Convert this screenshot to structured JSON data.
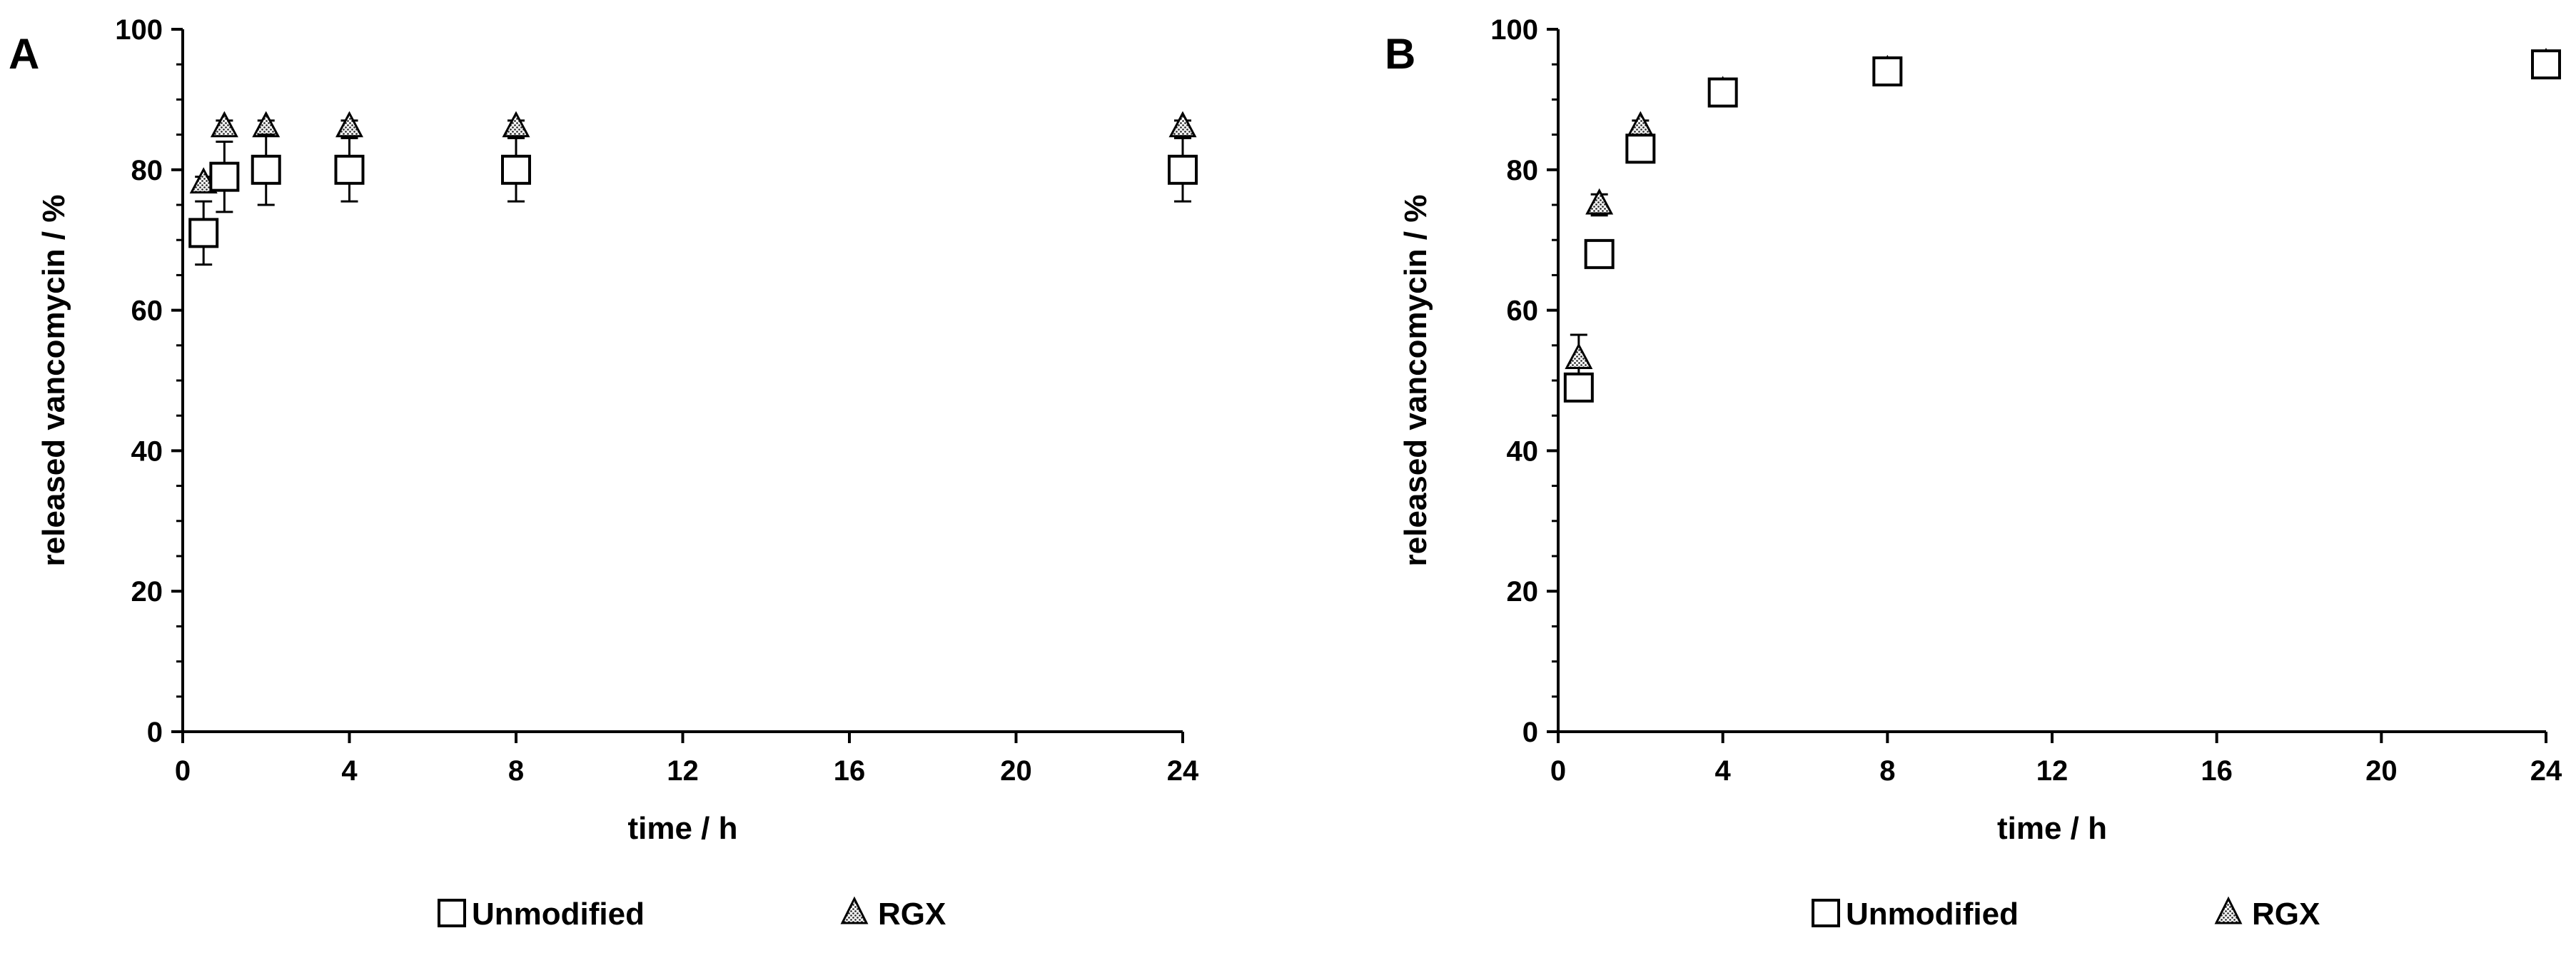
{
  "chart_data": [
    {
      "type": "scatter",
      "panel_label": "A",
      "xlabel": "time / h",
      "ylabel": "released vancomycin / %",
      "xlim": [
        0,
        24
      ],
      "ylim": [
        0,
        100
      ],
      "x_ticks": [
        0,
        4,
        8,
        12,
        16,
        20,
        24
      ],
      "y_ticks": [
        0,
        20,
        40,
        60,
        80,
        100
      ],
      "grid": false,
      "legend_position": "bottom",
      "series": [
        {
          "name": "Unmodified",
          "marker": "open-square",
          "x": [
            0.5,
            1,
            2,
            4,
            8,
            24
          ],
          "y": [
            71,
            79,
            80,
            80,
            80,
            80
          ],
          "error": [
            4.5,
            5,
            5,
            4.5,
            4.5,
            4.5
          ]
        },
        {
          "name": "RGX",
          "marker": "hatched-triangle",
          "x": [
            0.5,
            1,
            2,
            4,
            8,
            24
          ],
          "y": [
            78,
            86,
            86,
            86,
            86,
            86
          ],
          "error": [
            1,
            1,
            1,
            1,
            1,
            1
          ]
        }
      ]
    },
    {
      "type": "scatter",
      "panel_label": "B",
      "xlabel": "time / h",
      "ylabel": "released vancomycin / %",
      "xlim": [
        0,
        24
      ],
      "ylim": [
        0,
        100
      ],
      "x_ticks": [
        0,
        4,
        8,
        12,
        16,
        20,
        24
      ],
      "y_ticks": [
        0,
        20,
        40,
        60,
        80,
        100
      ],
      "grid": false,
      "legend_position": "bottom",
      "series": [
        {
          "name": "Unmodified",
          "marker": "open-square",
          "x": [
            0.5,
            1,
            2,
            4,
            8,
            24
          ],
          "y": [
            49,
            68,
            83,
            91,
            94,
            95
          ],
          "error": [
            1,
            1,
            1,
            1,
            1,
            1
          ]
        },
        {
          "name": "RGX",
          "marker": "hatched-triangle",
          "x": [
            0.5,
            1,
            2,
            4,
            8,
            24
          ],
          "y": [
            53,
            75,
            86,
            91,
            94,
            95
          ],
          "error": [
            3.5,
            1.5,
            1,
            1,
            1,
            1
          ]
        }
      ]
    }
  ]
}
